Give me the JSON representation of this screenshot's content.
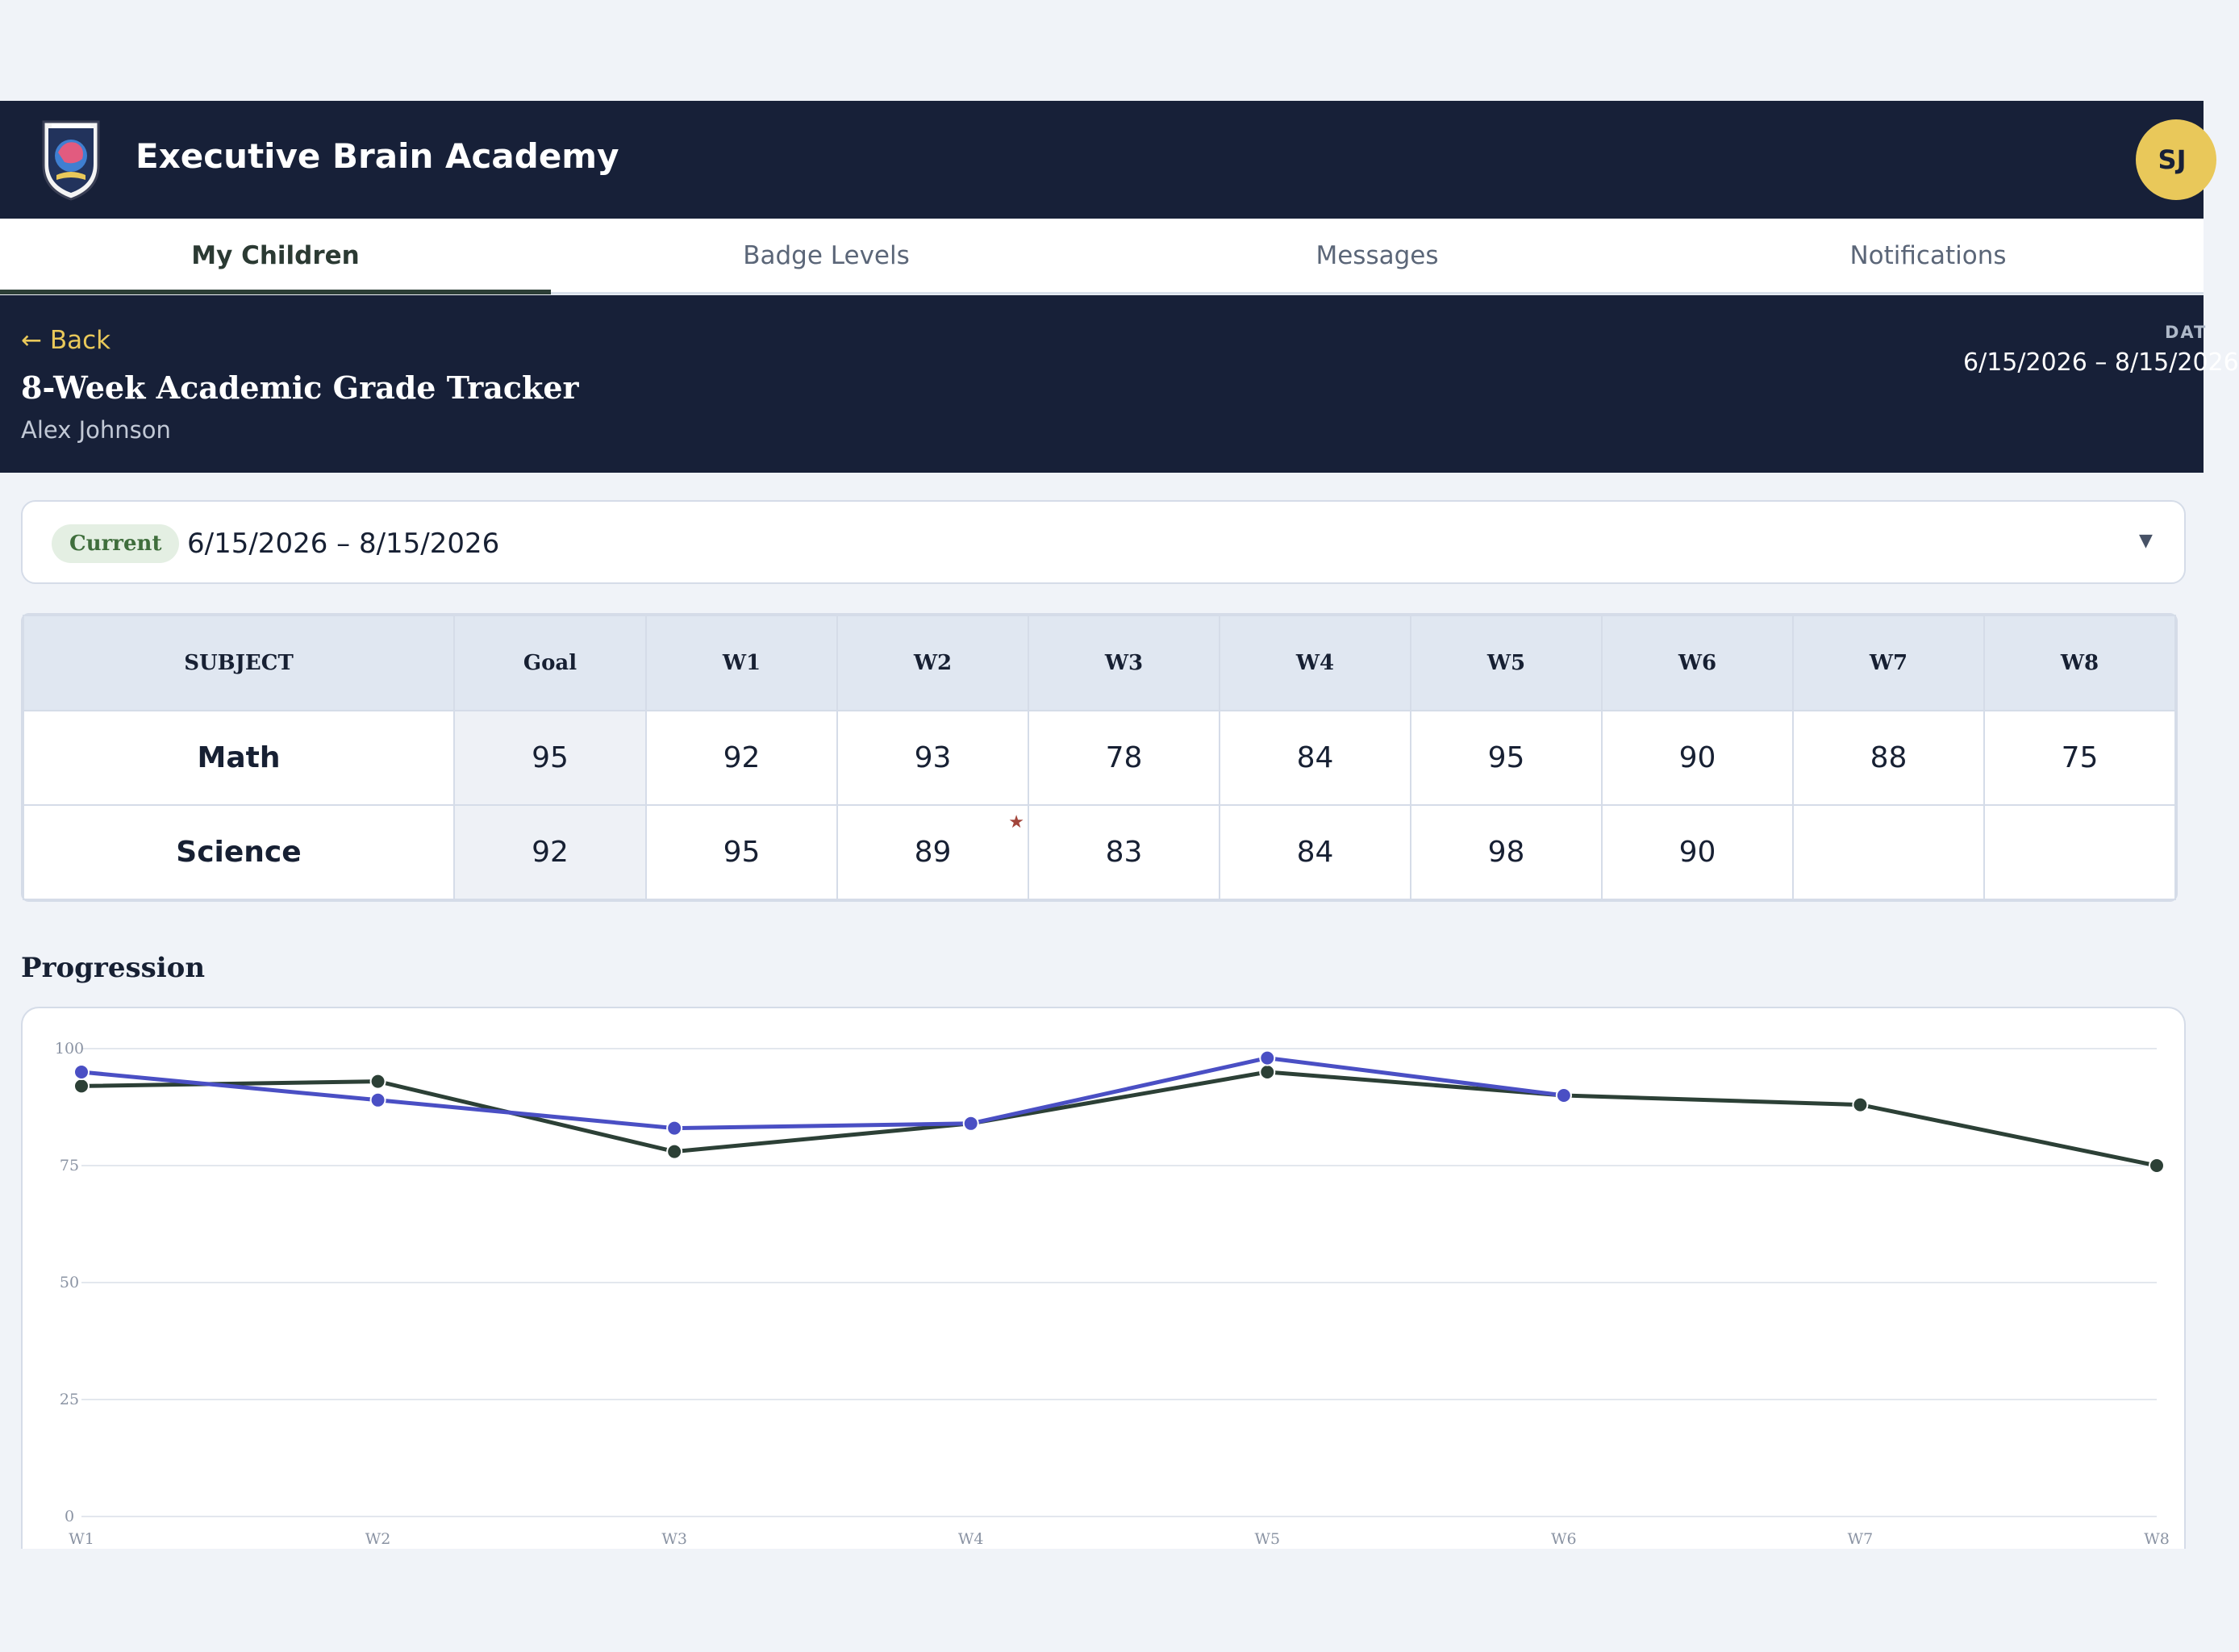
{
  "app": {
    "title": "Executive Brain Academy",
    "avatar_initials": "SJ",
    "logo_icon": "academy-crest-icon"
  },
  "tabs": [
    {
      "label": "My Children",
      "active": true
    },
    {
      "label": "Badge Levels",
      "active": false
    },
    {
      "label": "Messages",
      "active": false
    },
    {
      "label": "Notifications",
      "active": false
    }
  ],
  "sub_header": {
    "back_label": "← Back",
    "title": "8-Week Academic Grade Tracker",
    "child_name": "Alex Johnson",
    "date_label": "DAT",
    "date_range": "6/15/2026 – 8/15/2026"
  },
  "period_select": {
    "badge": "Current",
    "range": "6/15/2026 – 8/15/2026"
  },
  "table": {
    "headers": [
      "SUBJECT",
      "Goal",
      "W1",
      "W2",
      "W3",
      "W4",
      "W5",
      "W6",
      "W7",
      "W8"
    ],
    "rows": [
      {
        "subject": "Math",
        "goal": "95",
        "weeks": [
          "92",
          "93",
          "78",
          "84",
          "95",
          "90",
          "88",
          "75"
        ]
      },
      {
        "subject": "Science",
        "goal": "92",
        "weeks": [
          "95",
          "89",
          "83",
          "84",
          "98",
          "90",
          "",
          ""
        ],
        "star_week_index": 1
      }
    ]
  },
  "progression": {
    "title": "Progression"
  },
  "chart_data": {
    "type": "line",
    "categories": [
      "W1",
      "W2",
      "W3",
      "W4",
      "W5",
      "W6",
      "W7",
      "W8"
    ],
    "series": [
      {
        "values": [
          92,
          93,
          78,
          84,
          95,
          90,
          88,
          75
        ],
        "color": "#2c4036"
      },
      {
        "values": [
          95,
          89,
          83,
          84,
          98,
          90,
          null,
          null
        ],
        "color": "#4a4fc4"
      }
    ],
    "ylim": [
      0,
      100
    ],
    "yticks": [
      0,
      25,
      50,
      75,
      100
    ],
    "grid": true
  },
  "colors": {
    "navy": "#172038",
    "gold": "#e9c85a",
    "green_badge": "#3f6e3c",
    "star": "#a2453b"
  }
}
